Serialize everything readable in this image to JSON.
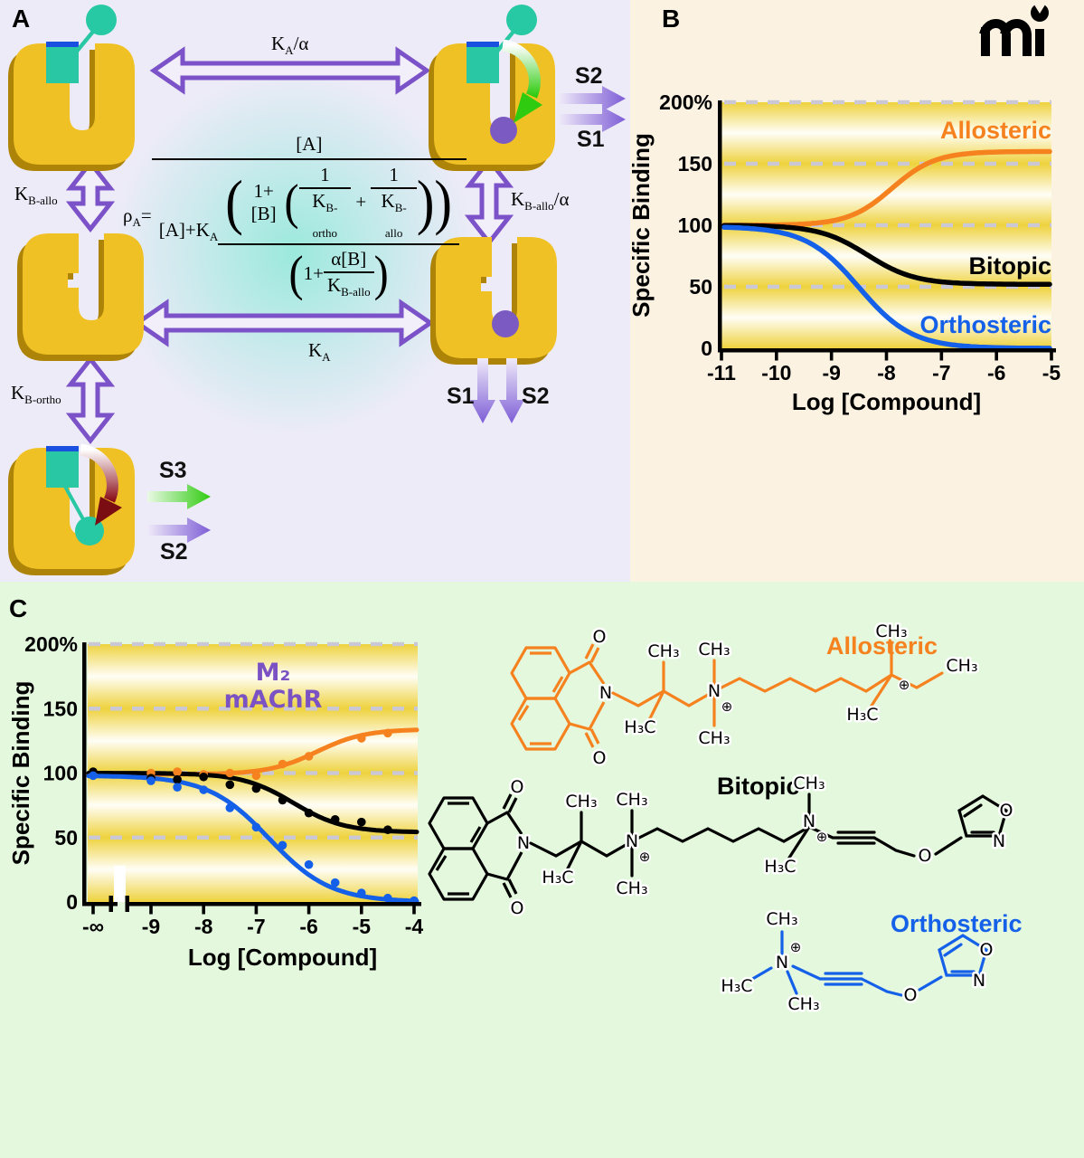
{
  "panels": {
    "a": "A",
    "b": "B",
    "c": "C"
  },
  "logo": {
    "text": "mi"
  },
  "colors": {
    "panel_a_bg": "#EEEBF8",
    "panel_b_bg": "#FBF2E2",
    "panel_c_bg": "#E4F8DE",
    "receptor_gold": "#F0C125",
    "receptor_shadow": "#AD8408",
    "arrow_purple": "#7B52C8",
    "teal_ligand": "#2AC7A4",
    "blue_strip": "#1A50E0",
    "purple_ball": "#7B5BC2",
    "orange": "#F5821F",
    "blue": "#1560E8",
    "stripe_yellow": "#EED23E",
    "grid_dash": "#C9C8D4",
    "annotation_purple": "#7B52C4"
  },
  "panelA": {
    "signals": {
      "s1": "S1",
      "s2": "S2",
      "s3": "S3"
    },
    "rates": {
      "ka_alpha": {
        "k": "K",
        "sub": "A",
        "post": "/α"
      },
      "ka": {
        "k": "K",
        "sub": "A",
        "post": ""
      },
      "kb_allo": {
        "k": "K",
        "sub": "B-allo",
        "post": ""
      },
      "kb_allo_alpha": {
        "k": "K",
        "sub": "B-allo",
        "post": "/α"
      },
      "kb_ortho": {
        "k": "K",
        "sub": "B-ortho",
        "post": ""
      }
    },
    "formula": {
      "rho": "ρ",
      "rho_sub": "A",
      "equals": "=",
      "numerator": "[A]",
      "den_prefix": "[A]+K",
      "den_prefix_sub": "A",
      "inner_num_pre": "1+[B]",
      "t1_num": "1",
      "t1_den": "K",
      "t1_den_sub": "B-ortho",
      "plus": "+",
      "t2_num": "1",
      "t2_den": "K",
      "t2_den_sub": "B-allo",
      "close2": "))",
      "g_open": "(",
      "g_pre": "1+",
      "g_num": "α[B]",
      "g_den": "K",
      "g_den_sub": "B-allo",
      "g_close": ")"
    }
  },
  "chart_data": [
    {
      "id": "B",
      "type": "line",
      "xlabel": "Log [Compound]",
      "ylabel": "Specific Binding",
      "xlim": [
        -11,
        -5
      ],
      "ylim": [
        0,
        200
      ],
      "x_tick_labels": [
        "-11",
        "-10",
        "-9",
        "-8",
        "-7",
        "-6",
        "-5"
      ],
      "y_tick_labels": [
        "200%",
        "150",
        "100",
        "50",
        "0"
      ],
      "y_tick_values": [
        200,
        150,
        100,
        50,
        0
      ],
      "y_gridlines": [
        200,
        150,
        100,
        50
      ],
      "grid_style": "dashed",
      "legend_position": "on-curve",
      "series": [
        {
          "name": "Allosteric",
          "color": "#F5821F",
          "model": "sigmoid",
          "start": 100,
          "end": 160,
          "logEC50": -7.9,
          "hill": 1.1
        },
        {
          "name": "Bitopic",
          "color": "#000000",
          "model": "sigmoid",
          "start": 100,
          "end": 52,
          "logEC50": -8.35,
          "hill": 1.0
        },
        {
          "name": "Orthosteric",
          "color": "#1560E8",
          "model": "sigmoid",
          "start": 99,
          "end": 0,
          "logEC50": -8.5,
          "hill": 0.9
        }
      ]
    },
    {
      "id": "C",
      "type": "line+scatter",
      "annotation": {
        "line1": "M₂",
        "line2": "mAChR",
        "color": "#7B52C4"
      },
      "xlabel": "Log [Compound]",
      "ylabel": "Specific Binding",
      "xlim": [
        -9,
        -4
      ],
      "ylim": [
        0,
        200
      ],
      "axis_break": true,
      "x_tick_labels": [
        "-∞",
        "-9",
        "-8",
        "-7",
        "-6",
        "-5",
        "-4"
      ],
      "y_tick_labels": [
        "200%",
        "150",
        "100",
        "50",
        "0"
      ],
      "y_tick_values": [
        200,
        150,
        100,
        50,
        0
      ],
      "y_gridlines": [
        200,
        150,
        100,
        50
      ],
      "grid_style": "dashed",
      "series": [
        {
          "name": "Allosteric",
          "color": "#F5821F",
          "model": "sigmoid",
          "start": 99,
          "end": 134,
          "logEC50": -5.85,
          "hill": 0.95,
          "points_x": [
            "-inf",
            -9,
            -8.5,
            -8,
            -7.5,
            -7,
            -6.5,
            -6,
            -5,
            -4.5
          ],
          "points_y": [
            99,
            100,
            101,
            99,
            100,
            98,
            107,
            113,
            127,
            131
          ]
        },
        {
          "name": "Bitopic",
          "color": "#000000",
          "model": "sigmoid",
          "start": 100,
          "end": 54,
          "logEC50": -6.3,
          "hill": 0.9,
          "points_x": [
            "-inf",
            -9,
            -8.5,
            -8,
            -7.5,
            -7,
            -6.5,
            -6,
            -5.5,
            -5,
            -4.5
          ],
          "points_y": [
            101,
            96,
            95,
            97,
            91,
            88,
            79,
            69,
            64,
            62,
            56
          ]
        },
        {
          "name": "Orthosteric",
          "color": "#1560E8",
          "model": "sigmoid",
          "start": 98,
          "end": 0,
          "logEC50": -6.75,
          "hill": 0.75,
          "points_x": [
            "-inf",
            -9,
            -8.5,
            -8,
            -7.5,
            -7,
            -6.5,
            -6,
            -5.5,
            -5,
            -4.5,
            -4
          ],
          "points_y": [
            98,
            94,
            89,
            87,
            73,
            58,
            44,
            29,
            15,
            7,
            3,
            1
          ]
        }
      ]
    }
  ],
  "structures": {
    "allosteric": {
      "label": "Allosteric",
      "color": "#F5821F"
    },
    "bitopic": {
      "label": "Bitopic",
      "color": "#000000"
    },
    "orthosteric": {
      "label": "Orthosteric",
      "color": "#1560E8"
    },
    "atoms": {
      "ch3": "CH₃",
      "h3c": "H₃C",
      "n": "N",
      "o": "O",
      "plus": "⊕"
    }
  }
}
